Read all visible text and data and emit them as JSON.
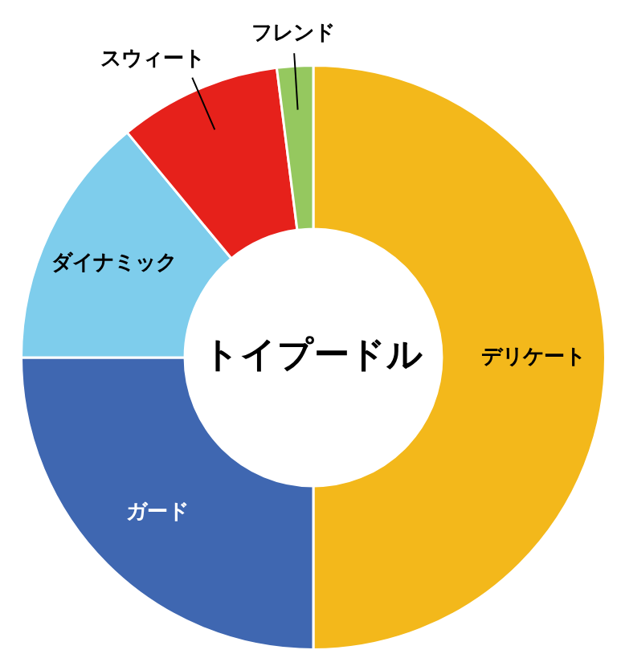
{
  "chart_data": {
    "type": "donut",
    "title": "トイプードル",
    "categories": [
      "デリケート",
      "ガード",
      "ダイナミック",
      "スウィート",
      "フレンド"
    ],
    "values": [
      50,
      25,
      14,
      9,
      2
    ],
    "colors": [
      "#f3b81b",
      "#3f67b1",
      "#7ecdec",
      "#e6211b",
      "#95c85f"
    ],
    "legend": false
  }
}
